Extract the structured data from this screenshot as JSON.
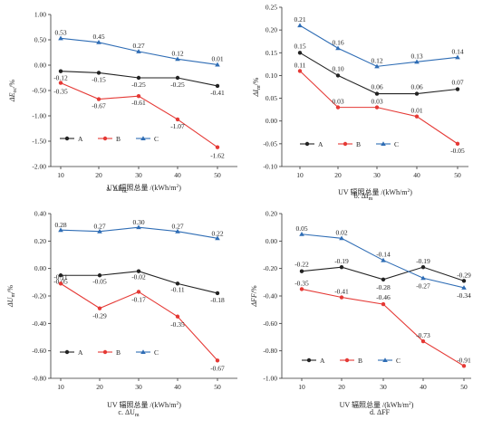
{
  "panel_color_map": {
    "A": "#222222",
    "B": "#e53935",
    "C": "#2f6db5"
  },
  "chart_data": [
    {
      "type": "line",
      "caption": "a. ΔE",
      "caption_sub": "oc",
      "ylabel": "ΔE",
      "ylabel_sub": "oc",
      "ylabel_unit": "/%",
      "xlabel": "UV 辐照总量 /(kWh/m",
      "xlabel_sup": "2",
      "xlabel_end": ")",
      "x": [
        10,
        20,
        30,
        40,
        50
      ],
      "ylim": [
        -2.0,
        1.0
      ],
      "yticks": [
        1.0,
        0.5,
        0.0,
        -0.5,
        -1.0,
        -1.5,
        -2.0
      ],
      "ytick_labels": [
        "1.00",
        "0.50",
        "0.00",
        "-0.50",
        "-1.00",
        "-1.50",
        "-2.00"
      ],
      "grid": false,
      "legend_position": "lower-left",
      "series": [
        {
          "name": "A",
          "values": [
            -0.12,
            -0.15,
            -0.25,
            -0.25,
            -0.41
          ],
          "labels": [
            "-0.12",
            "-0.15",
            "-0.25",
            "-0.25",
            "-0.41"
          ]
        },
        {
          "name": "B",
          "values": [
            -0.35,
            -0.67,
            -0.61,
            -1.07,
            -1.62
          ],
          "labels": [
            "-0.35",
            "-0.67",
            "-0.61",
            "-1.07",
            "-1.62"
          ]
        },
        {
          "name": "C",
          "values": [
            0.53,
            0.45,
            0.27,
            0.12,
            0.01
          ],
          "labels": [
            "0.53",
            "0.45",
            "0.27",
            "0.12",
            "0.01"
          ]
        }
      ]
    },
    {
      "type": "line",
      "caption": "b. ΔI",
      "caption_sub": "m",
      "ylabel": "ΔI",
      "ylabel_sub": "m",
      "ylabel_unit": "/%",
      "xlabel": "UV 辐照总量 /(kWh/m",
      "xlabel_sup": "2",
      "xlabel_end": ")",
      "x": [
        10,
        20,
        30,
        40,
        50
      ],
      "ylim": [
        -0.1,
        0.25
      ],
      "yticks": [
        0.25,
        0.2,
        0.15,
        0.1,
        0.05,
        0.0,
        -0.05,
        -0.1
      ],
      "ytick_labels": [
        "0.25",
        "0.20",
        "0.15",
        "0.10",
        "0.05",
        "0.00",
        "-0.05",
        "-0.10"
      ],
      "grid": false,
      "legend_position": "center-left",
      "series": [
        {
          "name": "A",
          "values": [
            0.15,
            0.1,
            0.06,
            0.06,
            0.07
          ],
          "labels": [
            "0.15",
            "0.10",
            "0.06",
            "0.06",
            "0.07"
          ]
        },
        {
          "name": "B",
          "values": [
            0.11,
            0.03,
            0.03,
            0.01,
            -0.05
          ],
          "labels": [
            "0.11",
            "0.03",
            "0.03",
            "0.01",
            "-0.05"
          ]
        },
        {
          "name": "C",
          "values": [
            0.21,
            0.16,
            0.12,
            0.13,
            0.14
          ],
          "labels": [
            "0.21",
            "0.16",
            "0.12",
            "0.13",
            "0.14"
          ]
        }
      ]
    },
    {
      "type": "line",
      "caption": "c. ΔU",
      "caption_sub": "m",
      "ylabel": "ΔU",
      "ylabel_sub": "m",
      "ylabel_unit": "/%",
      "xlabel": "UV 辐照总量 /(kWh/m",
      "xlabel_sup": "2",
      "xlabel_end": ")",
      "x": [
        10,
        20,
        30,
        40,
        50
      ],
      "ylim": [
        -0.8,
        0.4
      ],
      "yticks": [
        0.4,
        0.2,
        0.0,
        -0.2,
        -0.4,
        -0.6,
        -0.8
      ],
      "ytick_labels": [
        "0.40",
        "0.20",
        "0.00",
        "-0.20",
        "-0.40",
        "-0.60",
        "-0.80"
      ],
      "grid": false,
      "legend_position": "lower-left",
      "series": [
        {
          "name": "A",
          "values": [
            -0.05,
            -0.05,
            -0.02,
            -0.11,
            -0.18
          ],
          "labels": [
            "-0.05",
            "-0.05",
            "-0.02",
            "-0.11",
            "-0.18"
          ]
        },
        {
          "name": "B",
          "values": [
            -0.11,
            -0.29,
            -0.17,
            -0.35,
            -0.67
          ],
          "labels": [
            "-0.11",
            "-0.29",
            "-0.17",
            "-0.35",
            "-0.67"
          ]
        },
        {
          "name": "C",
          "values": [
            0.28,
            0.27,
            0.3,
            0.27,
            0.22
          ],
          "labels": [
            "0.28",
            "0.27",
            "0.30",
            "0.27",
            "0.22"
          ]
        }
      ]
    },
    {
      "type": "line",
      "caption": "d. ΔFF",
      "caption_sub": "",
      "ylabel": "ΔFF",
      "ylabel_sub": "",
      "ylabel_unit": "/%",
      "xlabel": "UV 辐照总量 /(kWh/m",
      "xlabel_sup": "2",
      "xlabel_end": ")",
      "x": [
        10,
        20,
        30,
        40,
        50
      ],
      "ylim": [
        -1.0,
        0.2
      ],
      "yticks": [
        0.2,
        0.0,
        -0.2,
        -0.4,
        -0.6,
        -0.8,
        -1.0
      ],
      "ytick_labels": [
        "0.20",
        "0.00",
        "-0.20",
        "-0.40",
        "-0.60",
        "-0.80",
        "-1.00"
      ],
      "grid": false,
      "legend_position": "lower-left",
      "series": [
        {
          "name": "A",
          "values": [
            -0.22,
            -0.19,
            -0.28,
            -0.19,
            -0.29
          ],
          "labels": [
            "-0.22",
            "-0.19",
            "-0.28",
            "-0.19",
            "-0.29"
          ]
        },
        {
          "name": "B",
          "values": [
            -0.35,
            -0.41,
            -0.46,
            -0.73,
            -0.91
          ],
          "labels": [
            "-0.35",
            "-0.41",
            "-0.46",
            "-0.73",
            "-0.91"
          ]
        },
        {
          "name": "C",
          "values": [
            0.05,
            0.02,
            -0.14,
            -0.27,
            -0.34
          ],
          "labels": [
            "0.05",
            "0.02",
            "-0.14",
            "-0.27",
            "-0.34"
          ]
        }
      ]
    }
  ]
}
